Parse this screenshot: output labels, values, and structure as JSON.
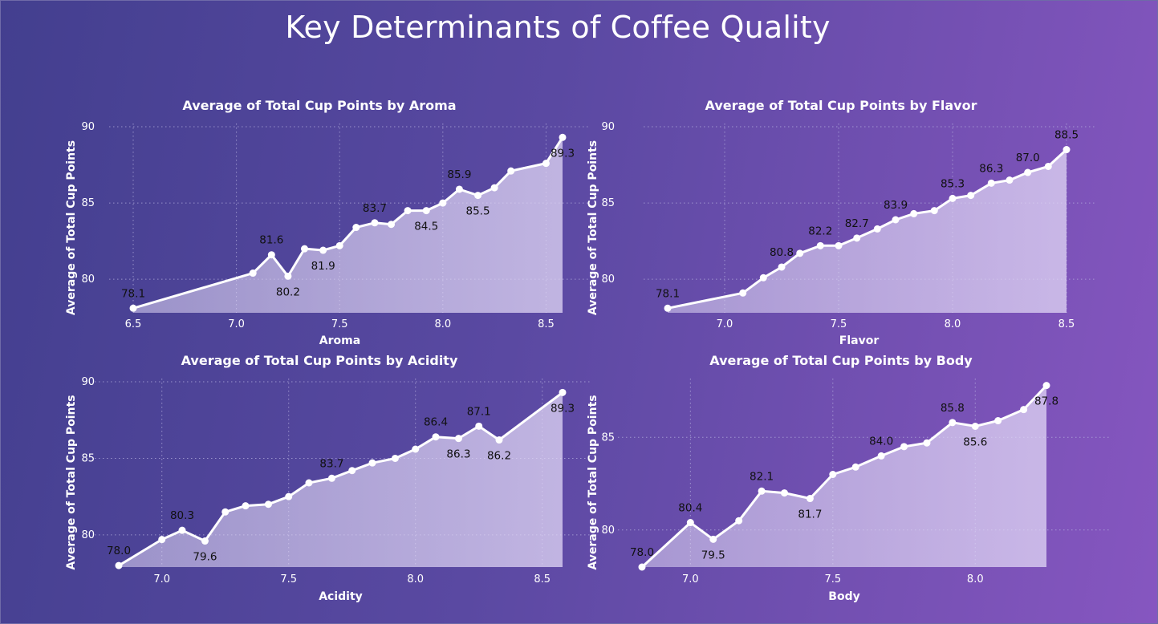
{
  "page": {
    "title": "Key Determinants of Coffee Quality"
  },
  "colors": {
    "background_start": "#433f8f",
    "background_end": "#8656c0",
    "line": "#ffffff",
    "area_fill": "#ddd4f3"
  },
  "chart_data": [
    {
      "type": "area",
      "title": "Average of Total Cup Points by Aroma",
      "xlabel": "Aroma",
      "ylabel": "Average of Total Cup Points",
      "xlim": [
        6.5,
        8.58
      ],
      "ylim": [
        77.8,
        90
      ],
      "xticks": [
        6.5,
        7.0,
        7.5,
        8.0,
        8.5
      ],
      "xtick_labels": [
        "6.5",
        "7.0",
        "7.5",
        "8.0",
        "8.5"
      ],
      "yticks": [
        80,
        85,
        90
      ],
      "ytick_labels": [
        "80",
        "85",
        "90"
      ],
      "grid": true,
      "x": [
        6.5,
        7.08,
        7.17,
        7.25,
        7.33,
        7.42,
        7.5,
        7.58,
        7.67,
        7.75,
        7.83,
        7.92,
        8.0,
        8.08,
        8.17,
        8.25,
        8.33,
        8.5,
        8.58
      ],
      "y": [
        78.1,
        80.4,
        81.6,
        80.2,
        82.0,
        81.9,
        82.2,
        83.4,
        83.7,
        83.6,
        84.5,
        84.5,
        85.0,
        85.9,
        85.5,
        86.0,
        87.1,
        87.6,
        89.3
      ],
      "labels": [
        {
          "index": 0,
          "text": "78.1",
          "position": "above"
        },
        {
          "index": 2,
          "text": "81.6",
          "position": "above"
        },
        {
          "index": 3,
          "text": "80.2",
          "position": "below"
        },
        {
          "index": 5,
          "text": "81.9",
          "position": "below"
        },
        {
          "index": 8,
          "text": "83.7",
          "position": "above"
        },
        {
          "index": 11,
          "text": "84.5",
          "position": "below"
        },
        {
          "index": 13,
          "text": "85.9",
          "position": "above"
        },
        {
          "index": 14,
          "text": "85.5",
          "position": "below"
        },
        {
          "index": 18,
          "text": "89.3",
          "position": "below"
        }
      ]
    },
    {
      "type": "area",
      "title": "Average of Total Cup Points by Flavor",
      "xlabel": "Flavor",
      "ylabel": "Average of Total Cup Points",
      "xlim": [
        6.75,
        8.5
      ],
      "ylim": [
        77.8,
        90
      ],
      "xticks": [
        7.0,
        7.5,
        8.0,
        8.5
      ],
      "xtick_labels": [
        "7.0",
        "7.5",
        "8.0",
        "8.5"
      ],
      "yticks": [
        80,
        85,
        90
      ],
      "ytick_labels": [
        "80",
        "85",
        "90"
      ],
      "grid": true,
      "x": [
        6.75,
        7.08,
        7.17,
        7.25,
        7.33,
        7.42,
        7.5,
        7.58,
        7.67,
        7.75,
        7.83,
        7.92,
        8.0,
        8.08,
        8.17,
        8.25,
        8.33,
        8.42,
        8.5
      ],
      "y": [
        78.1,
        79.1,
        80.1,
        80.8,
        81.7,
        82.2,
        82.2,
        82.7,
        83.3,
        83.9,
        84.3,
        84.5,
        85.3,
        85.5,
        86.3,
        86.5,
        87.0,
        87.4,
        88.5
      ],
      "labels": [
        {
          "index": 0,
          "text": "78.1",
          "position": "above"
        },
        {
          "index": 3,
          "text": "80.8",
          "position": "above"
        },
        {
          "index": 5,
          "text": "82.2",
          "position": "above"
        },
        {
          "index": 7,
          "text": "82.7",
          "position": "above"
        },
        {
          "index": 9,
          "text": "83.9",
          "position": "above"
        },
        {
          "index": 12,
          "text": "85.3",
          "position": "above"
        },
        {
          "index": 14,
          "text": "86.3",
          "position": "above"
        },
        {
          "index": 16,
          "text": "87.0",
          "position": "above"
        },
        {
          "index": 18,
          "text": "88.5",
          "position": "above"
        }
      ]
    },
    {
      "type": "area",
      "title": "Average of Total Cup Points by Acidity",
      "xlabel": "Acidity",
      "ylabel": "Average of Total Cup Points",
      "xlim": [
        6.83,
        8.58
      ],
      "ylim": [
        77.9,
        90
      ],
      "xticks": [
        7.0,
        7.5,
        8.0,
        8.5
      ],
      "xtick_labels": [
        "7.0",
        "7.5",
        "8.0",
        "8.5"
      ],
      "yticks": [
        80,
        85,
        90
      ],
      "ytick_labels": [
        "80",
        "85",
        "90"
      ],
      "grid": true,
      "x": [
        6.83,
        7.0,
        7.08,
        7.17,
        7.25,
        7.33,
        7.42,
        7.5,
        7.58,
        7.67,
        7.75,
        7.83,
        7.92,
        8.0,
        8.08,
        8.17,
        8.25,
        8.33,
        8.58
      ],
      "y": [
        78.0,
        79.7,
        80.3,
        79.6,
        81.5,
        81.9,
        82.0,
        82.5,
        83.4,
        83.7,
        84.2,
        84.7,
        85.0,
        85.6,
        86.4,
        86.3,
        87.1,
        86.2,
        89.3
      ],
      "labels": [
        {
          "index": 0,
          "text": "78.0",
          "position": "above"
        },
        {
          "index": 2,
          "text": "80.3",
          "position": "above"
        },
        {
          "index": 3,
          "text": "79.6",
          "position": "below"
        },
        {
          "index": 9,
          "text": "83.7",
          "position": "above"
        },
        {
          "index": 14,
          "text": "86.4",
          "position": "above"
        },
        {
          "index": 15,
          "text": "86.3",
          "position": "below"
        },
        {
          "index": 16,
          "text": "87.1",
          "position": "above"
        },
        {
          "index": 17,
          "text": "86.2",
          "position": "below"
        },
        {
          "index": 18,
          "text": "89.3",
          "position": "below"
        }
      ]
    },
    {
      "type": "area",
      "title": "Average of Total Cup Points by Body",
      "xlabel": "Body",
      "ylabel": "Average of Total Cup Points",
      "xlim": [
        6.83,
        8.25
      ],
      "ylim": [
        78.0,
        88.0
      ],
      "xticks": [
        7.0,
        7.5,
        8.0
      ],
      "xtick_labels": [
        "7.0",
        "7.5",
        "8.0"
      ],
      "yticks": [
        80,
        85
      ],
      "ytick_labels": [
        "80",
        "85"
      ],
      "grid": true,
      "x": [
        6.83,
        7.0,
        7.08,
        7.17,
        7.25,
        7.33,
        7.42,
        7.5,
        7.58,
        7.67,
        7.75,
        7.83,
        7.92,
        8.0,
        8.08,
        8.17,
        8.25
      ],
      "y": [
        78.0,
        80.4,
        79.5,
        80.5,
        82.1,
        82.0,
        81.7,
        83.0,
        83.4,
        84.0,
        84.5,
        84.7,
        85.8,
        85.6,
        85.9,
        86.5,
        87.8
      ],
      "labels": [
        {
          "index": 0,
          "text": "78.0",
          "position": "above"
        },
        {
          "index": 1,
          "text": "80.4",
          "position": "above"
        },
        {
          "index": 2,
          "text": "79.5",
          "position": "below"
        },
        {
          "index": 4,
          "text": "82.1",
          "position": "above"
        },
        {
          "index": 6,
          "text": "81.7",
          "position": "below"
        },
        {
          "index": 9,
          "text": "84.0",
          "position": "above"
        },
        {
          "index": 12,
          "text": "85.8",
          "position": "above"
        },
        {
          "index": 13,
          "text": "85.6",
          "position": "below"
        },
        {
          "index": 16,
          "text": "87.8",
          "position": "below"
        }
      ]
    }
  ]
}
